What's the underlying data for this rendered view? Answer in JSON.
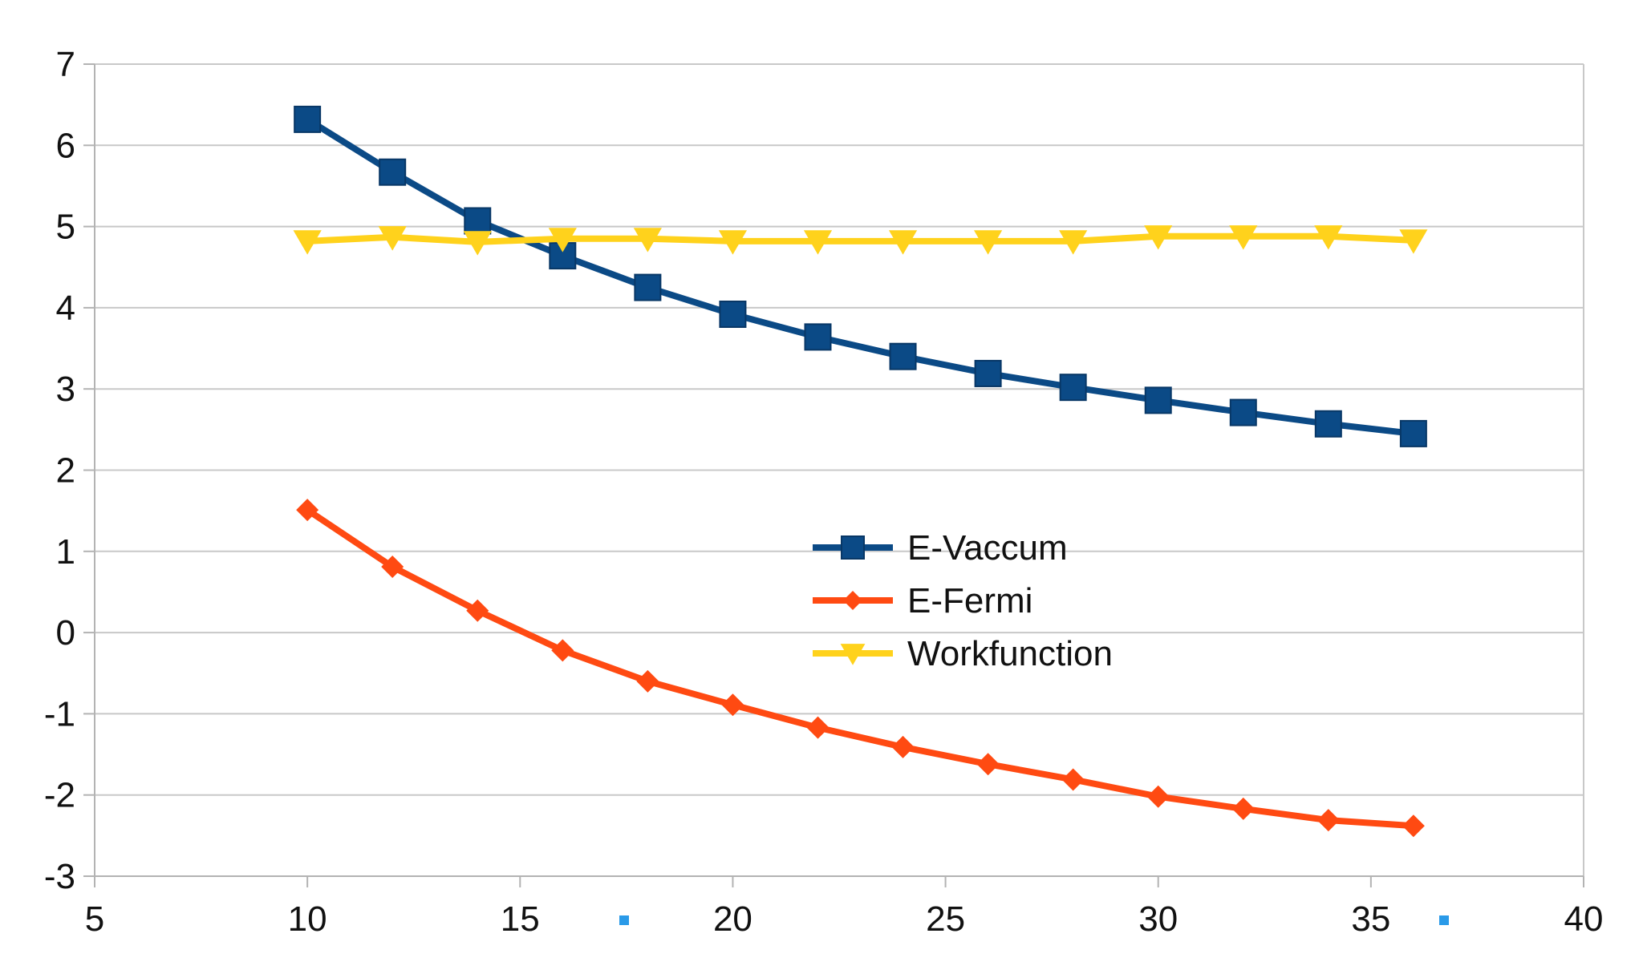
{
  "chart_data": {
    "type": "line",
    "title": "",
    "xlabel": "",
    "ylabel": "",
    "xlim": [
      5,
      40
    ],
    "ylim": [
      -3,
      7
    ],
    "x_ticks": [
      5,
      10,
      15,
      20,
      25,
      30,
      35,
      40
    ],
    "y_ticks": [
      -3,
      -2,
      -1,
      0,
      1,
      2,
      3,
      4,
      5,
      6,
      7
    ],
    "grid": "horizontal",
    "legend_position": "center",
    "x": [
      10,
      12,
      14,
      16,
      18,
      20,
      22,
      24,
      26,
      28,
      30,
      32,
      34,
      36
    ],
    "series": [
      {
        "name": "E-Vaccum",
        "color": "#0b4a86",
        "marker": "square",
        "values": [
          6.32,
          5.67,
          5.07,
          4.64,
          4.25,
          3.92,
          3.64,
          3.4,
          3.19,
          3.02,
          2.86,
          2.71,
          2.57,
          2.45
        ]
      },
      {
        "name": "E-Fermi",
        "color": "#ff4a12",
        "marker": "diamond",
        "values": [
          1.51,
          0.81,
          0.27,
          -0.22,
          -0.6,
          -0.89,
          -1.17,
          -1.41,
          -1.62,
          -1.81,
          -2.02,
          -2.17,
          -2.31,
          -2.38
        ]
      },
      {
        "name": "Workfunction",
        "color": "#ffd21c",
        "marker": "triangle-down",
        "values": [
          4.82,
          4.87,
          4.81,
          4.85,
          4.85,
          4.82,
          4.82,
          4.82,
          4.82,
          4.82,
          4.88,
          4.88,
          4.88,
          4.83
        ]
      }
    ]
  }
}
